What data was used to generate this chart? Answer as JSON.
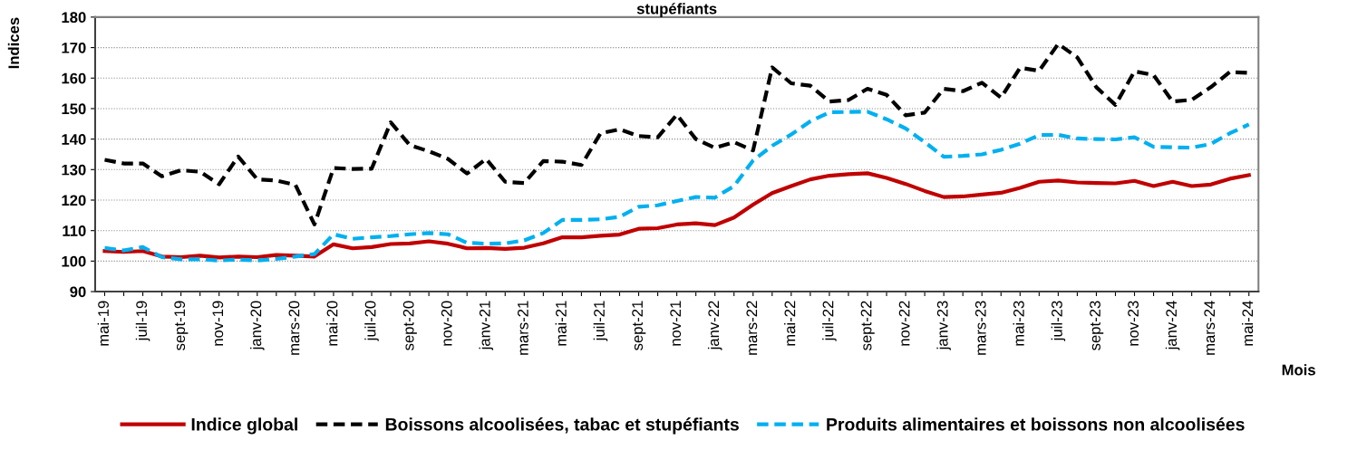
{
  "chart_data": {
    "type": "line",
    "title": "stupéfiants",
    "xlabel": "Mois",
    "ylabel": "Indices",
    "categories": [
      "mai-19",
      null,
      "juil-19",
      null,
      "sept-19",
      null,
      "nov-19",
      null,
      "janv-20",
      null,
      "mars-20",
      null,
      "mai-20",
      null,
      "juil-20",
      null,
      "sept-20",
      null,
      "nov-20",
      null,
      "janv-21",
      null,
      "mars-21",
      null,
      "mai-21",
      null,
      "juil-21",
      null,
      "sept-21",
      null,
      "nov-21",
      null,
      "janv-22",
      null,
      "mars-22",
      null,
      "mai-22",
      null,
      "juil-22",
      null,
      "sept-22",
      null,
      "nov-22",
      null,
      "janv-23",
      null,
      "mars-23",
      null,
      "mai-23",
      null,
      "juil-23",
      null,
      "sept-23",
      null,
      "nov-23",
      null,
      "janv-24",
      null,
      "mars-24",
      null,
      "mai-24"
    ],
    "series": [
      {
        "name": "Indice global",
        "color": "#c00000",
        "line_style": "solid",
        "values": [
          103.3,
          103,
          103.3,
          101.5,
          101.3,
          101.8,
          101.2,
          101.5,
          101.3,
          102,
          101.8,
          101.5,
          105.5,
          104.2,
          104.6,
          105.6,
          105.8,
          106.5,
          105.7,
          104.2,
          104.3,
          104,
          104.4,
          105.8,
          107.8,
          107.8,
          108.3,
          108.7,
          110.6,
          110.8,
          112,
          112.4,
          111.8,
          114.3,
          118.5,
          122.3,
          124.6,
          126.8,
          128,
          128.5,
          128.8,
          127.3,
          125.3,
          123,
          121,
          121.2,
          121.8,
          122.4,
          124,
          126,
          126.4,
          125.8,
          125.6,
          125.5,
          126.3,
          124.6,
          126,
          124.6,
          125.1,
          127,
          128.2
        ]
      },
      {
        "name": "Boissons alcoolisées, tabac et stupéfiants",
        "color": "#000000",
        "line_style": "dashed",
        "values": [
          133.2,
          132,
          132,
          127.8,
          129.8,
          129.3,
          125.2,
          134.3,
          126.8,
          126.4,
          125,
          112,
          130.5,
          130.2,
          130.3,
          145.5,
          138,
          136,
          133.5,
          128.7,
          133.5,
          126,
          125.6,
          132.8,
          132.6,
          131.5,
          141.9,
          143.2,
          141,
          140.6,
          148,
          140,
          137.1,
          139,
          136.3,
          163.5,
          158.3,
          157.5,
          152.3,
          152.8,
          156.5,
          154.5,
          147.8,
          148.7,
          156.5,
          155.7,
          158.5,
          153.6,
          163.4,
          162.4,
          171.2,
          166.8,
          157,
          151.2,
          162.2,
          161,
          152.3,
          152.9,
          157,
          162,
          161.7
        ]
      },
      {
        "name": "Produits alimentaires et boissons non alcoolisées",
        "color": "#00b0f0",
        "line_style": "dashed",
        "values": [
          104.3,
          103.5,
          104.6,
          101.3,
          100.6,
          100.6,
          100.2,
          100.5,
          100.2,
          100.7,
          101.5,
          102.3,
          108.8,
          107.3,
          107.8,
          108.2,
          108.8,
          109.2,
          108.8,
          106,
          105.7,
          105.8,
          106.8,
          109.2,
          113.5,
          113.5,
          113.7,
          114.5,
          117.8,
          118.3,
          119.7,
          121,
          120.8,
          124.6,
          133,
          137.8,
          141.5,
          145.8,
          148.8,
          148.9,
          149,
          146.5,
          143.5,
          139,
          134.2,
          134.5,
          135,
          136.5,
          138.5,
          141.3,
          141.4,
          140.2,
          140,
          139.9,
          140.6,
          137.5,
          137.3,
          137.2,
          138.4,
          141.9,
          144.8
        ]
      }
    ],
    "ylim": [
      90,
      180
    ],
    "yticks": [
      90,
      100,
      110,
      120,
      130,
      140,
      150,
      160,
      170,
      180
    ],
    "grid": "y",
    "legend": "bottom",
    "marker": "none"
  }
}
